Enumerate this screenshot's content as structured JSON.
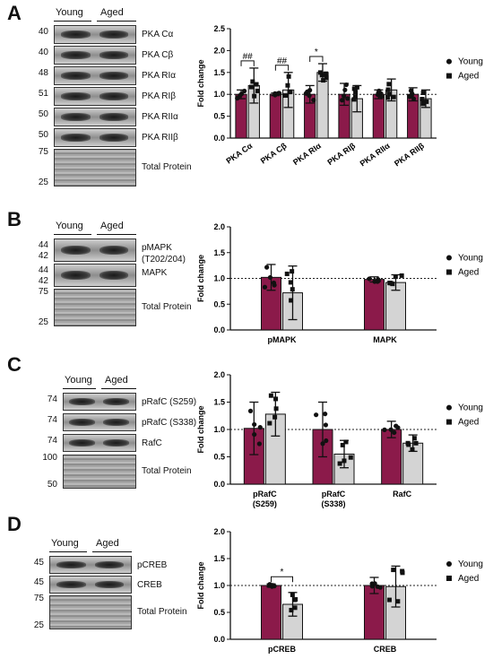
{
  "panels": [
    {
      "letter": "A",
      "headers": [
        "Young",
        "Aged"
      ],
      "rows": [
        {
          "mw": "40",
          "label": "PKA Cα"
        },
        {
          "mw": "40",
          "label": "PKA Cβ"
        },
        {
          "mw": "48",
          "label": "PKA RIα"
        },
        {
          "mw": "51",
          "label": "PKA RIβ"
        },
        {
          "mw": "50",
          "label": "PKA RIIα"
        },
        {
          "mw": "50",
          "label": "PKA RIIβ"
        }
      ],
      "total": {
        "label": "Total Protein",
        "mw_top": "75",
        "mw_bottom": "25"
      }
    },
    {
      "letter": "B",
      "headers": [
        "Young",
        "Aged"
      ],
      "rows": [
        {
          "mw": "44\n42",
          "label": "pMAPK\n(T202/204)"
        },
        {
          "mw": "44\n42",
          "label": "MAPK"
        }
      ],
      "total": {
        "label": "Total Protein",
        "mw_top": "75",
        "mw_bottom": "25"
      }
    },
    {
      "letter": "C",
      "headers": [
        "Young",
        "Aged"
      ],
      "rows": [
        {
          "mw": "74",
          "label": "pRafC (S259)"
        },
        {
          "mw": "74",
          "label": "pRafC (S338)"
        },
        {
          "mw": "74",
          "label": "RafC"
        }
      ],
      "total": {
        "label": "Total Protein",
        "mw_top": "100",
        "mw_bottom": "50"
      }
    },
    {
      "letter": "D",
      "headers": [
        "Young",
        "Aged"
      ],
      "rows": [
        {
          "mw": "45",
          "label": "pCREB"
        },
        {
          "mw": "45",
          "label": "CREB"
        }
      ],
      "total": {
        "label": "Total Protein",
        "mw_top": "75",
        "mw_bottom": "25"
      }
    }
  ],
  "colors": {
    "young": "#8b1a4a",
    "aged": "#d4d4d4"
  },
  "chart_data": [
    {
      "type": "bar",
      "ylabel": "Fold change",
      "ylim": [
        0,
        2.5
      ],
      "yticks": [
        "0.0",
        "0.5",
        "1.0",
        "1.5",
        "2.0",
        "2.5"
      ],
      "categories": [
        "PKA Cα",
        "PKA Cβ",
        "PKA RIα",
        "PKA RIβ",
        "PKA RIIα",
        "PKA RIIβ"
      ],
      "series": [
        {
          "name": "Young",
          "values": [
            1.0,
            1.0,
            1.0,
            1.0,
            1.0,
            1.0
          ],
          "err": [
            0.1,
            0.03,
            0.2,
            0.25,
            0.1,
            0.15
          ]
        },
        {
          "name": "Aged",
          "values": [
            1.2,
            1.1,
            1.5,
            0.9,
            1.1,
            0.9
          ],
          "err": [
            0.4,
            0.4,
            0.2,
            0.3,
            0.25,
            0.2
          ]
        }
      ],
      "annotations": [
        {
          "text": "##",
          "category": 0
        },
        {
          "text": "##",
          "category": 1
        },
        {
          "text": "*",
          "category": 2
        }
      ],
      "legend": [
        "Young",
        "Aged"
      ],
      "legend_position": "right",
      "reference_line": 1.0
    },
    {
      "type": "bar",
      "ylabel": "Fold change",
      "ylim": [
        0,
        2.0
      ],
      "yticks": [
        "0.0",
        "0.5",
        "1.0",
        "1.5",
        "2.0"
      ],
      "categories": [
        "pMAPK",
        "MAPK"
      ],
      "series": [
        {
          "name": "Young",
          "values": [
            1.02,
            0.98
          ],
          "err": [
            0.25,
            0.05
          ]
        },
        {
          "name": "Aged",
          "values": [
            0.72,
            0.92
          ],
          "err": [
            0.52,
            0.15
          ]
        }
      ],
      "legend": [
        "Young",
        "Aged"
      ],
      "legend_position": "right",
      "reference_line": 1.0
    },
    {
      "type": "bar",
      "ylabel": "Fold change",
      "ylim": [
        0,
        2.0
      ],
      "yticks": [
        "0.0",
        "0.5",
        "1.0",
        "1.5",
        "2.0"
      ],
      "categories": [
        "pRafC\n(S259)",
        "pRafC\n(S338)",
        "RafC"
      ],
      "series": [
        {
          "name": "Young",
          "values": [
            1.02,
            1.0,
            1.0
          ],
          "err": [
            0.48,
            0.5,
            0.15
          ]
        },
        {
          "name": "Aged",
          "values": [
            1.28,
            0.55,
            0.75
          ],
          "err": [
            0.4,
            0.25,
            0.15
          ]
        }
      ],
      "legend": [
        "Young",
        "Aged"
      ],
      "legend_position": "right",
      "reference_line": 1.0
    },
    {
      "type": "bar",
      "ylabel": "Fold change",
      "ylim": [
        0,
        2.0
      ],
      "yticks": [
        "0.0",
        "0.5",
        "1.0",
        "1.5",
        "2.0"
      ],
      "categories": [
        "pCREB",
        "CREB"
      ],
      "series": [
        {
          "name": "Young",
          "values": [
            1.0,
            1.0
          ],
          "err": [
            0.03,
            0.15
          ]
        },
        {
          "name": "Aged",
          "values": [
            0.65,
            0.98
          ],
          "err": [
            0.22,
            0.38
          ]
        }
      ],
      "annotations": [
        {
          "text": "*",
          "category": 0
        }
      ],
      "legend": [
        "Young",
        "Aged"
      ],
      "legend_position": "right",
      "reference_line": 1.0
    }
  ]
}
